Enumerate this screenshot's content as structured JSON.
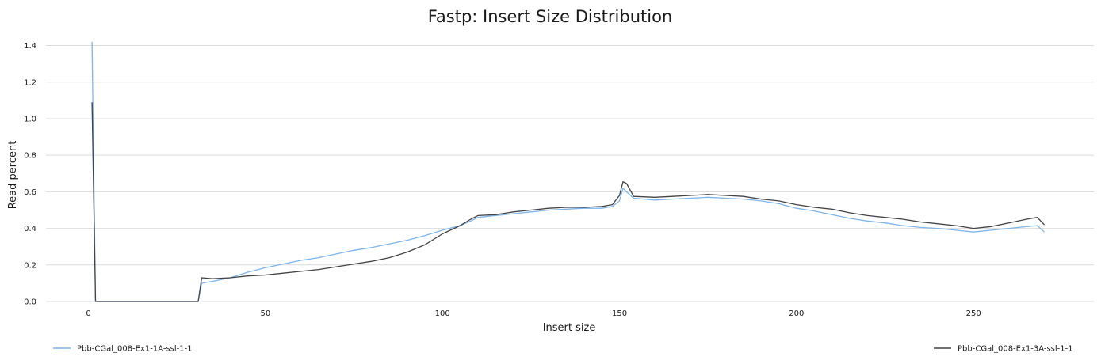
{
  "chart_data": {
    "type": "line",
    "title": "Fastp: Insert Size Distribution",
    "xlabel": "Insert size",
    "ylabel": "Read percent",
    "xlim": [
      -12,
      284
    ],
    "ylim": [
      0,
      1.45
    ],
    "x_ticks": [
      0,
      50,
      100,
      150,
      200,
      250
    ],
    "x_tick_labels": [
      "0",
      "50",
      "100",
      "150",
      "200",
      "250"
    ],
    "y_ticks": [
      0,
      0.2,
      0.4,
      0.6,
      0.8,
      1.0,
      1.2,
      1.4
    ],
    "y_tick_labels": [
      "0.0",
      "0.2",
      "0.4",
      "0.6",
      "0.8",
      "1.0",
      "1.2",
      "1.4"
    ],
    "grid": true,
    "legend_position": "bottom",
    "series": [
      {
        "name": "Pbb-CGal_008-Ex1-1A-ssl-1-1",
        "color": "#7cb5ec",
        "points": [
          [
            1,
            1.42
          ],
          [
            2,
            0.0
          ],
          [
            30,
            0.0
          ],
          [
            31,
            0.0
          ],
          [
            32,
            0.1
          ],
          [
            35,
            0.11
          ],
          [
            40,
            0.13
          ],
          [
            45,
            0.16
          ],
          [
            50,
            0.185
          ],
          [
            55,
            0.205
          ],
          [
            60,
            0.225
          ],
          [
            65,
            0.24
          ],
          [
            70,
            0.26
          ],
          [
            75,
            0.28
          ],
          [
            80,
            0.295
          ],
          [
            85,
            0.315
          ],
          [
            90,
            0.335
          ],
          [
            95,
            0.36
          ],
          [
            100,
            0.39
          ],
          [
            105,
            0.415
          ],
          [
            108,
            0.44
          ],
          [
            110,
            0.46
          ],
          [
            115,
            0.47
          ],
          [
            120,
            0.48
          ],
          [
            125,
            0.49
          ],
          [
            130,
            0.5
          ],
          [
            135,
            0.505
          ],
          [
            140,
            0.51
          ],
          [
            145,
            0.51
          ],
          [
            148,
            0.52
          ],
          [
            150,
            0.55
          ],
          [
            151,
            0.62
          ],
          [
            152,
            0.6
          ],
          [
            154,
            0.565
          ],
          [
            160,
            0.555
          ],
          [
            165,
            0.56
          ],
          [
            170,
            0.565
          ],
          [
            175,
            0.57
          ],
          [
            180,
            0.565
          ],
          [
            185,
            0.56
          ],
          [
            190,
            0.55
          ],
          [
            195,
            0.535
          ],
          [
            200,
            0.51
          ],
          [
            205,
            0.495
          ],
          [
            210,
            0.475
          ],
          [
            215,
            0.455
          ],
          [
            220,
            0.44
          ],
          [
            225,
            0.43
          ],
          [
            230,
            0.415
          ],
          [
            235,
            0.405
          ],
          [
            240,
            0.4
          ],
          [
            245,
            0.39
          ],
          [
            250,
            0.38
          ],
          [
            255,
            0.39
          ],
          [
            260,
            0.4
          ],
          [
            265,
            0.41
          ],
          [
            268,
            0.415
          ],
          [
            270,
            0.38
          ]
        ]
      },
      {
        "name": "Pbb-CGal_008-Ex1-3A-ssl-1-1",
        "color": "#434348",
        "points": [
          [
            1,
            1.09
          ],
          [
            2,
            0.0
          ],
          [
            30,
            0.0
          ],
          [
            31,
            0.0
          ],
          [
            32,
            0.13
          ],
          [
            35,
            0.125
          ],
          [
            40,
            0.13
          ],
          [
            45,
            0.14
          ],
          [
            50,
            0.145
          ],
          [
            55,
            0.155
          ],
          [
            60,
            0.165
          ],
          [
            65,
            0.175
          ],
          [
            70,
            0.19
          ],
          [
            75,
            0.205
          ],
          [
            80,
            0.22
          ],
          [
            85,
            0.24
          ],
          [
            90,
            0.27
          ],
          [
            95,
            0.31
          ],
          [
            100,
            0.37
          ],
          [
            105,
            0.415
          ],
          [
            108,
            0.45
          ],
          [
            110,
            0.47
          ],
          [
            115,
            0.475
          ],
          [
            120,
            0.49
          ],
          [
            125,
            0.5
          ],
          [
            130,
            0.51
          ],
          [
            135,
            0.515
          ],
          [
            140,
            0.515
          ],
          [
            145,
            0.52
          ],
          [
            148,
            0.53
          ],
          [
            150,
            0.58
          ],
          [
            151,
            0.655
          ],
          [
            152,
            0.645
          ],
          [
            154,
            0.575
          ],
          [
            160,
            0.57
          ],
          [
            165,
            0.575
          ],
          [
            170,
            0.58
          ],
          [
            175,
            0.585
          ],
          [
            180,
            0.58
          ],
          [
            185,
            0.575
          ],
          [
            190,
            0.56
          ],
          [
            195,
            0.55
          ],
          [
            200,
            0.53
          ],
          [
            205,
            0.515
          ],
          [
            210,
            0.505
          ],
          [
            215,
            0.485
          ],
          [
            220,
            0.47
          ],
          [
            225,
            0.46
          ],
          [
            230,
            0.45
          ],
          [
            235,
            0.435
          ],
          [
            240,
            0.425
          ],
          [
            245,
            0.415
          ],
          [
            250,
            0.4
          ],
          [
            255,
            0.41
          ],
          [
            260,
            0.43
          ],
          [
            265,
            0.45
          ],
          [
            268,
            0.46
          ],
          [
            270,
            0.42
          ]
        ]
      }
    ]
  }
}
